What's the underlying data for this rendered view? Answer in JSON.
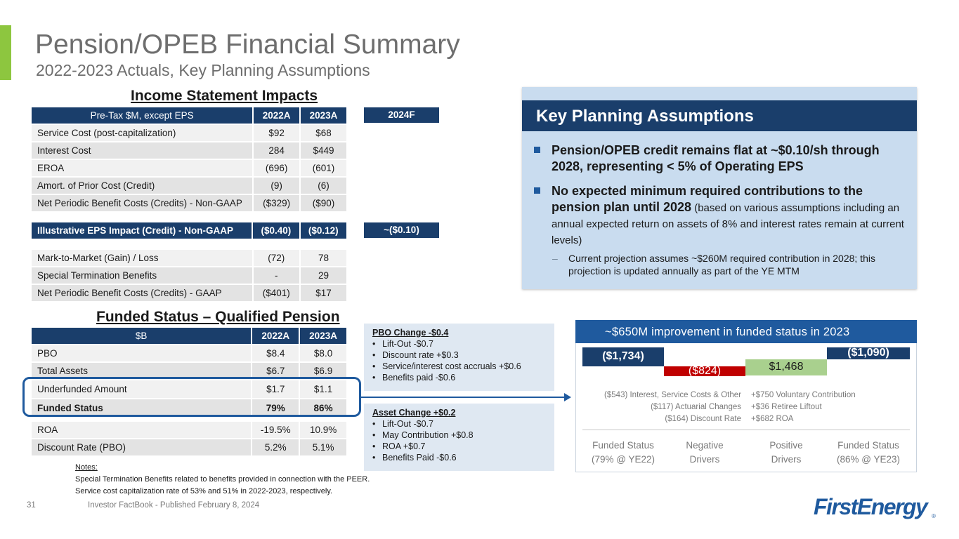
{
  "header": {
    "title": "Pension/OPEB Financial Summary",
    "subtitle": "2022-2023 Actuals, Key Planning Assumptions"
  },
  "income": {
    "section_title": "Income Statement Impacts",
    "col_label": "Pre-Tax $M, except EPS",
    "col_2022": "2022A",
    "col_2023": "2023A",
    "col_2024": "2024F",
    "rows": [
      {
        "label": "Service Cost (post-capitalization)",
        "v2022": "$92",
        "v2023": "$68"
      },
      {
        "label": "Interest Cost",
        "v2022": "284",
        "v2023": "$449"
      },
      {
        "label": "EROA",
        "v2022": "(696)",
        "v2023": "(601)"
      },
      {
        "label": "Amort. of Prior Cost (Credit)",
        "v2022": "(9)",
        "v2023": "(6)"
      },
      {
        "label": "Net Periodic Benefit Costs (Credits) - Non-GAAP",
        "v2022": "($329)",
        "v2023": "($90)"
      }
    ],
    "eps": {
      "label": "Illustrative EPS Impact (Credit) - Non-GAAP",
      "v2022": "($0.40)",
      "v2023": "($0.12)",
      "v2024": "~($0.10)"
    },
    "gaap_rows": [
      {
        "label": "Mark-to-Market (Gain) / Loss",
        "v2022": "(72)",
        "v2023": "78"
      },
      {
        "label": "Special Termination Benefits",
        "v2022": "-",
        "v2023": "29"
      },
      {
        "label": "Net Periodic Benefit Costs (Credits) - GAAP",
        "v2022": "($401)",
        "v2023": "$17"
      }
    ]
  },
  "funded": {
    "section_title": "Funded Status – Qualified Pension",
    "col_label": "$B",
    "col_2022": "2022A",
    "col_2023": "2023A",
    "rows": [
      {
        "label": "PBO",
        "v2022": "$8.4",
        "v2023": "$8.0"
      },
      {
        "label": "Total Assets",
        "v2022": "$6.7",
        "v2023": "$6.9"
      },
      {
        "label": "Underfunded Amount",
        "v2022": "$1.7",
        "v2023": "$1.1"
      },
      {
        "label": "Funded Status",
        "v2022": "79%",
        "v2023": "86%"
      }
    ],
    "extra_rows": [
      {
        "label": "ROA",
        "v2022": "-19.5%",
        "v2023": "10.9%"
      },
      {
        "label": "Discount Rate (PBO)",
        "v2022": "5.2%",
        "v2023": "5.1%"
      }
    ]
  },
  "pbo_change": {
    "title": "PBO Change -$0.4",
    "items": [
      "Lift-Out -$0.7",
      "Discount rate +$0.3",
      "Service/interest cost accruals +$0.6",
      "Benefits paid -$0.6"
    ]
  },
  "asset_change": {
    "title": "Asset Change +$0.2",
    "items": [
      "Lift-Out -$0.7",
      "May Contribution +$0.8",
      "ROA +$0.7",
      "Benefits Paid -$0.6"
    ]
  },
  "kpa": {
    "title": "Key Planning Assumptions",
    "item1": "Pension/OPEB credit remains flat at ~$0.10/sh through 2028, representing < 5% of Operating EPS",
    "item2_bold": "No expected minimum required contributions to the pension plan until 2028",
    "item2_rest": " (based on various assumptions including an annual expected return on assets of 8% and interest rates remain at current levels)",
    "sub_dash": "–",
    "sub": "Current projection assumes ~$260M required contribution in 2028; this projection is updated annually as part of the YE MTM"
  },
  "chart_data": {
    "type": "waterfall",
    "title": "~$650M improvement in funded status in 2023",
    "unit": "$M",
    "categories": [
      "Funded Status (79% @ YE22)",
      "Negative Drivers",
      "Positive Drivers",
      "Funded Status (86% @ YE23)"
    ],
    "values": [
      -1734,
      -824,
      1468,
      -1090
    ],
    "value_labels": [
      "($1,734)",
      "($824)",
      "$1,468",
      "($1,090)"
    ],
    "category_lines": [
      [
        "Funded Status",
        "(79% @ YE22)"
      ],
      [
        "Negative",
        "Drivers"
      ],
      [
        "Positive",
        "Drivers"
      ],
      [
        "Funded Status",
        "(86% @ YE23)"
      ]
    ],
    "negative_drivers": [
      "($543) Interest, Service Costs & Other",
      "($117) Actuarial Changes",
      "($164) Discount Rate"
    ],
    "positive_drivers": [
      "+$750 Voluntary Contribution",
      "+$36 Retiree Liftout",
      "+$682 ROA"
    ],
    "colors": {
      "total": "#1a3e6b",
      "negative": "#c00000",
      "positive": "#a9d08e"
    }
  },
  "notes": {
    "title": "Notes:",
    "line1": "Special Termination Benefits related to benefits provided in connection with the PEER.",
    "line2": "Service cost capitalization rate of 53% and 51% in 2022-2023, respectively."
  },
  "footer": {
    "page": "31",
    "text": "Investor FactBook - Published February 8, 2024",
    "logo": "FirstEnergy",
    "logo_mark": "®"
  }
}
